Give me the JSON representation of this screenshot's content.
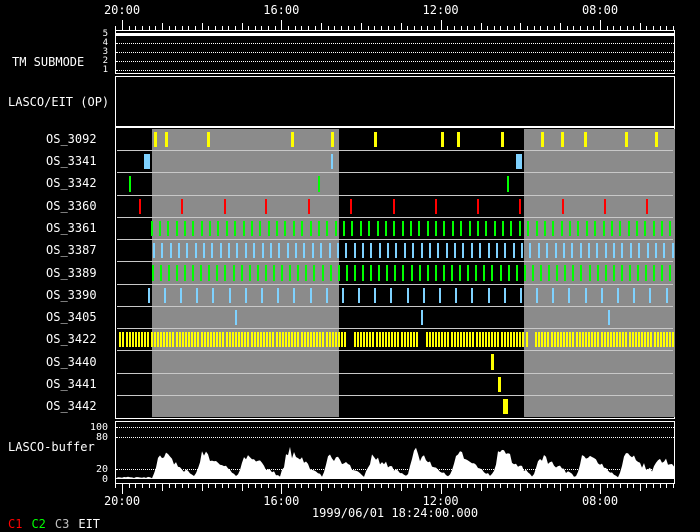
{
  "meta": {
    "timestamp_label": "1999/06/01 18:24:00.000"
  },
  "colors": {
    "background": "#000000",
    "foreground": "#ffffff",
    "observation_window_gray": "#8b8b8b",
    "yellow": "#ffff00",
    "green": "#00ff00",
    "red": "#ff0000",
    "cyan": "#7fd2ff"
  },
  "time_axis": {
    "labels": [
      {
        "text": "20:00",
        "pos": 0.0125
      },
      {
        "text": "16:00",
        "pos": 0.297
      },
      {
        "text": "12:00",
        "pos": 0.5815
      },
      {
        "text": "08:00",
        "pos": 0.866
      }
    ],
    "hour_step": 0.071125,
    "minor_per_hour": 6
  },
  "tm_submode": {
    "label": "TM SUBMODE",
    "tick_labels": [
      "5",
      "4",
      "3",
      "2",
      "1"
    ],
    "active_level": "5"
  },
  "lasco_eit": {
    "label": "LASCO/EIT (OP)"
  },
  "legend": [
    {
      "text": "C1",
      "color": "#ff0000"
    },
    {
      "text": "C2",
      "color": "#00ff00"
    },
    {
      "text": "C3",
      "color": "#c0c0c0"
    },
    {
      "text": "EIT",
      "color": "#ffffff"
    }
  ],
  "chart_data": [
    {
      "type": "scatter",
      "title": "LASCO/EIT operational sequence event timeline",
      "x_tick_labels": [
        "20:00",
        "16:00",
        "12:00",
        "08:00"
      ],
      "x_tick_positions": [
        0.0125,
        0.297,
        0.5815,
        0.866
      ],
      "observation_windows": [
        [
          0.0625,
          0.398
        ],
        [
          0.729,
          1.0
        ]
      ],
      "series": [
        {
          "label": "OS_3092",
          "color": "#ffff00",
          "mark_width": 3,
          "marks": [
            0.066,
            0.086,
            0.161,
            0.3125,
            0.384,
            0.461,
            0.58,
            0.61,
            0.688,
            0.759,
            0.795,
            0.836,
            0.911,
            0.964
          ]
        },
        {
          "label": "OS_3341",
          "color": "#7fd2ff",
          "mark_width": 2,
          "marks": [
            0.384
          ],
          "marks_wide": [
            0.049,
            0.715
          ],
          "wide_width": 6
        },
        {
          "label": "OS_3342",
          "color": "#00ff00",
          "mark_width": 2,
          "marks": [
            0.021,
            0.361,
            0.698
          ]
        },
        {
          "label": "OS_3360",
          "color": "#ff0000",
          "mark_width": 2,
          "marks": [
            0.039,
            0.115,
            0.191,
            0.266,
            0.342,
            0.418,
            0.494,
            0.569,
            0.645,
            0.721,
            0.797,
            0.872,
            0.948
          ]
        },
        {
          "label": "OS_3361",
          "color": "#00ff00",
          "mark_width": 2,
          "pattern": {
            "start": 0.06,
            "step": 0.015,
            "end": 0.998
          }
        },
        {
          "label": "OS_3387",
          "color": "#7fd2ff",
          "mark_width": 2,
          "pattern": {
            "start": 0.064,
            "step": 0.015,
            "end": 0.998
          }
        },
        {
          "label": "OS_3389",
          "color": "#00ff00",
          "mark_width": 2,
          "pattern": {
            "start": 0.062,
            "step": 0.0145,
            "end": 0.998
          }
        },
        {
          "label": "OS_3390",
          "color": "#7fd2ff",
          "mark_width": 2,
          "pattern": {
            "start": 0.055,
            "step": 0.029,
            "end": 0.998
          }
        },
        {
          "label": "OS_3405",
          "color": "#7fd2ff",
          "mark_width": 2,
          "marks": [
            0.211,
            0.545,
            0.879
          ]
        },
        {
          "label": "OS_3422",
          "color": "#ffff00",
          "mark_width": 2,
          "pattern": {
            "start": 0.004,
            "step": 0.0056,
            "end": 0.997
          },
          "gaps": [
            [
              0.41,
              0.422
            ],
            [
              0.54,
              0.552
            ],
            [
              0.735,
              0.747
            ]
          ]
        },
        {
          "label": "OS_3440",
          "color": "#ffff00",
          "mark_width": 3,
          "marks": [
            0.67
          ]
        },
        {
          "label": "OS_3441",
          "color": "#ffff00",
          "mark_width": 3,
          "marks": [
            0.682
          ]
        },
        {
          "label": "OS_3442",
          "color": "#ffff00",
          "mark_width": 5,
          "marks": [
            0.692
          ]
        }
      ]
    },
    {
      "type": "area",
      "title": "LASCO-buffer",
      "ylim": [
        0,
        110
      ],
      "yticks": [
        100,
        80,
        20,
        0
      ],
      "grid_yticks": [
        100,
        80,
        20
      ],
      "fill_color": "#ffffff",
      "noise_floor": 3,
      "bumps": [
        {
          "pos": 0.08,
          "h": 58
        },
        {
          "pos": 0.156,
          "h": 62
        },
        {
          "pos": 0.232,
          "h": 54
        },
        {
          "pos": 0.308,
          "h": 64
        },
        {
          "pos": 0.384,
          "h": 57
        },
        {
          "pos": 0.459,
          "h": 52
        },
        {
          "pos": 0.535,
          "h": 60
        },
        {
          "pos": 0.611,
          "h": 56
        },
        {
          "pos": 0.687,
          "h": 63
        },
        {
          "pos": 0.762,
          "h": 53
        },
        {
          "pos": 0.838,
          "h": 59
        },
        {
          "pos": 0.914,
          "h": 55
        },
        {
          "pos": 0.975,
          "h": 48
        }
      ]
    }
  ]
}
